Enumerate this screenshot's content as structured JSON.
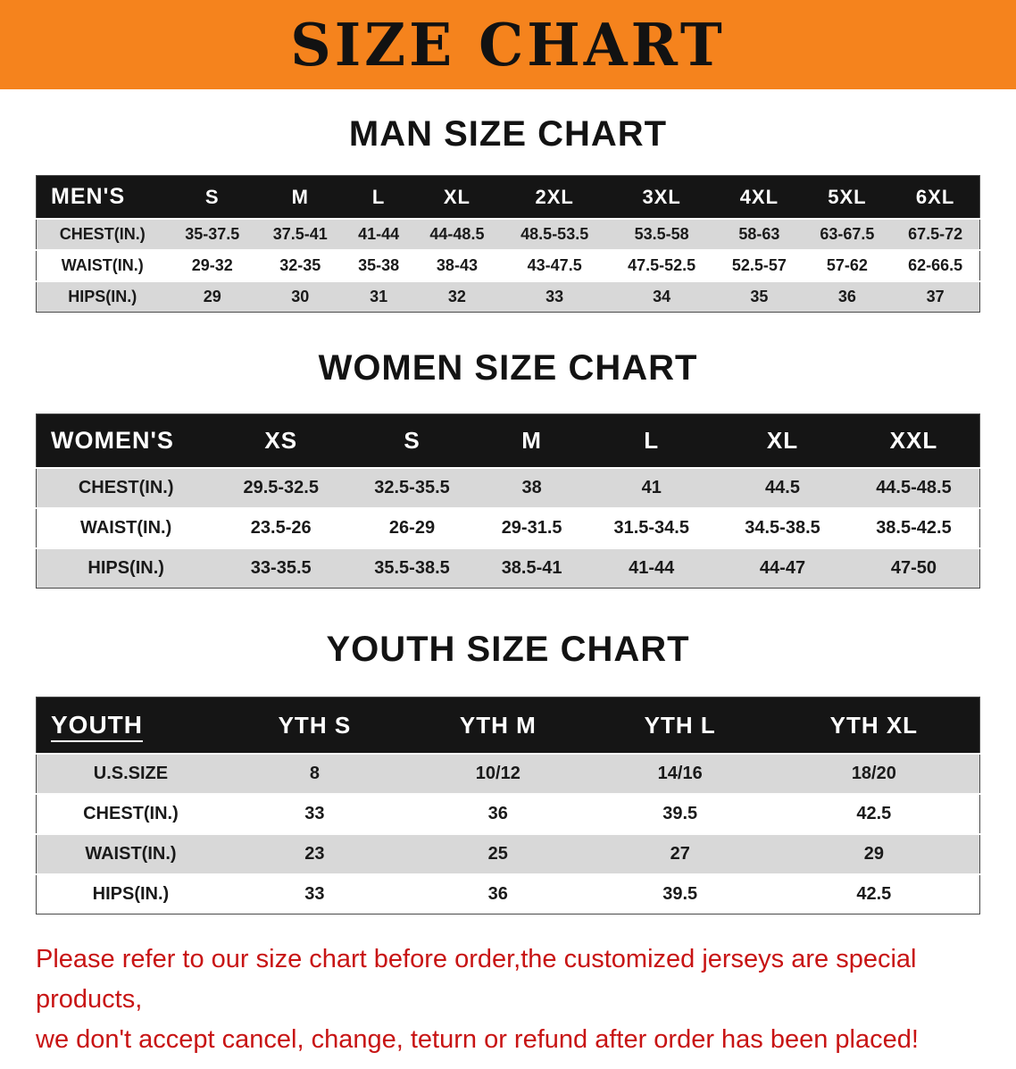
{
  "banner": {
    "title": "SIZE CHART",
    "bg_color": "#f5831d"
  },
  "colors": {
    "table_header_bg": "#151515",
    "row_stripe": "#d8d8d8",
    "disclaimer_text": "#c81414"
  },
  "tables": {
    "men": {
      "heading": "MAN SIZE CHART",
      "header": [
        "MEN'S",
        "S",
        "M",
        "L",
        "XL",
        "2XL",
        "3XL",
        "4XL",
        "5XL",
        "6XL"
      ],
      "rows": [
        [
          "CHEST(IN.)",
          "35-37.5",
          "37.5-41",
          "41-44",
          "44-48.5",
          "48.5-53.5",
          "53.5-58",
          "58-63",
          "63-67.5",
          "67.5-72"
        ],
        [
          "WAIST(IN.)",
          "29-32",
          "32-35",
          "35-38",
          "38-43",
          "43-47.5",
          "47.5-52.5",
          "52.5-57",
          "57-62",
          "62-66.5"
        ],
        [
          "HIPS(IN.)",
          "29",
          "30",
          "31",
          "32",
          "33",
          "34",
          "35",
          "36",
          "37"
        ]
      ]
    },
    "women": {
      "heading": "WOMEN SIZE CHART",
      "header": [
        "WOMEN'S",
        "XS",
        "S",
        "M",
        "L",
        "XL",
        "XXL"
      ],
      "rows": [
        [
          "CHEST(IN.)",
          "29.5-32.5",
          "32.5-35.5",
          "38",
          "41",
          "44.5",
          "44.5-48.5"
        ],
        [
          "WAIST(IN.)",
          "23.5-26",
          "26-29",
          "29-31.5",
          "31.5-34.5",
          "34.5-38.5",
          "38.5-42.5"
        ],
        [
          "HIPS(IN.)",
          "33-35.5",
          "35.5-38.5",
          "38.5-41",
          "41-44",
          "44-47",
          "47-50"
        ]
      ]
    },
    "youth": {
      "heading": "YOUTH SIZE CHART",
      "header": [
        "YOUTH",
        "YTH S",
        "YTH M",
        "YTH L",
        "YTH XL"
      ],
      "rows": [
        [
          "U.S.SIZE",
          "8",
          "10/12",
          "14/16",
          "18/20"
        ],
        [
          "CHEST(IN.)",
          "33",
          "36",
          "39.5",
          "42.5"
        ],
        [
          "WAIST(IN.)",
          "23",
          "25",
          "27",
          "29"
        ],
        [
          "HIPS(IN.)",
          "33",
          "36",
          "39.5",
          "42.5"
        ]
      ]
    }
  },
  "disclaimer": {
    "line1": "Please refer to our size chart before order,the customized jerseys are special products,",
    "line2": "we don't accept cancel, change, teturn or refund after order has been placed!"
  }
}
